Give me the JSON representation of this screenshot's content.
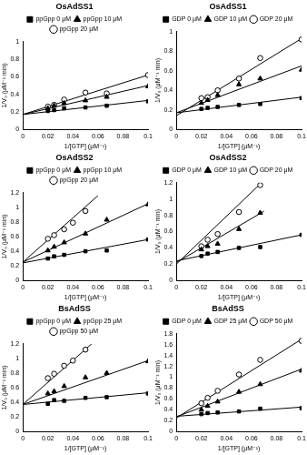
{
  "chart_data": [
    {
      "type": "scatter",
      "title": "OsAdSS1",
      "x_label": "1/[GTP] (μM⁻¹)",
      "y_label": "1/V₀ (μM⁻¹ min)",
      "xlim": [
        0,
        0.1
      ],
      "xticks": [
        0,
        0.02,
        0.04,
        0.06,
        0.08,
        0.1
      ],
      "ylim": [
        0,
        1
      ],
      "yticks": [
        0,
        0.2,
        0.4,
        0.6,
        0.8,
        1
      ],
      "grid": false,
      "legend": "top",
      "series": [
        {
          "name": "ppGpp 0 μM",
          "color": "#000000",
          "marker": "square",
          "x": [
            0.02,
            0.025,
            0.033,
            0.05,
            0.067,
            0.1
          ],
          "values": [
            0.21,
            0.22,
            0.24,
            0.25,
            0.27,
            0.32
          ],
          "fit": {
            "x": [
              0,
              0.1
            ],
            "values": [
              0.17,
              0.33
            ]
          }
        },
        {
          "name": "ppGpp 10 μM",
          "color": "#000000",
          "marker": "triangle",
          "x": [
            0.02,
            0.025,
            0.033,
            0.05,
            0.067,
            0.1
          ],
          "values": [
            0.24,
            0.27,
            0.3,
            0.33,
            0.37,
            0.49
          ],
          "fit": {
            "x": [
              0,
              0.1
            ],
            "values": [
              0.17,
              0.5
            ]
          }
        },
        {
          "name": "ppGpp 20 μM",
          "color": "#000000",
          "marker": "circle-open",
          "x": [
            0.02,
            0.025,
            0.033,
            0.05,
            0.067,
            0.1
          ],
          "values": [
            0.26,
            0.28,
            0.34,
            0.42,
            0.41,
            0.62
          ],
          "fit": {
            "x": [
              0,
              0.1
            ],
            "values": [
              0.17,
              0.62
            ]
          }
        }
      ]
    },
    {
      "type": "scatter",
      "title": "OsAdSS1",
      "x_label": "1/[GTP] (μM⁻¹)",
      "y_label": "1/V₀ (μM⁻¹ min)",
      "xlim": [
        0,
        0.1
      ],
      "xticks": [
        0,
        0.02,
        0.04,
        0.06,
        0.08,
        0.1
      ],
      "ylim": [
        0,
        1
      ],
      "yticks": [
        0,
        0.2,
        0.4,
        0.6,
        0.8,
        1
      ],
      "grid": false,
      "legend": "top",
      "series": [
        {
          "name": "GDP 0 μM",
          "color": "#000000",
          "marker": "square",
          "x": [
            0.02,
            0.025,
            0.033,
            0.05,
            0.067,
            0.1
          ],
          "values": [
            0.21,
            0.22,
            0.23,
            0.25,
            0.26,
            0.32
          ],
          "fit": {
            "x": [
              0,
              0.1
            ],
            "values": [
              0.17,
              0.33
            ]
          }
        },
        {
          "name": "GDP 10 μM",
          "color": "#000000",
          "marker": "triangle",
          "x": [
            0.02,
            0.025,
            0.033,
            0.05,
            0.067,
            0.1
          ],
          "values": [
            0.27,
            0.3,
            0.35,
            0.46,
            0.52,
            0.61
          ],
          "fit": {
            "x": [
              0,
              0.1
            ],
            "values": [
              0.17,
              0.65
            ]
          }
        },
        {
          "name": "GDP 20 μM",
          "color": "#000000",
          "marker": "circle-open",
          "x": [
            0.02,
            0.025,
            0.033,
            0.05,
            0.067,
            0.1
          ],
          "values": [
            0.32,
            0.33,
            0.4,
            0.52,
            0.73,
            0.92
          ],
          "fit": {
            "x": [
              0,
              0.1
            ],
            "values": [
              0.14,
              0.93
            ]
          }
        }
      ]
    },
    {
      "type": "scatter",
      "title": "OsAdSS2",
      "x_label": "1/[GTP] (μM⁻¹)",
      "y_label": "1/V₀ (μM⁻¹ min)",
      "xlim": [
        0,
        0.1
      ],
      "xticks": [
        0,
        0.02,
        0.04,
        0.06,
        0.08,
        0.1
      ],
      "ylim": [
        0,
        1.2
      ],
      "yticks": [
        0,
        0.2,
        0.4,
        0.6,
        0.8,
        1,
        1.2
      ],
      "grid": false,
      "legend": "top",
      "series": [
        {
          "name": "ppGpp 0 μM",
          "color": "#000000",
          "marker": "square",
          "x": [
            0.02,
            0.025,
            0.033,
            0.05,
            0.067,
            0.1
          ],
          "values": [
            0.3,
            0.33,
            0.35,
            0.4,
            0.41,
            0.56
          ],
          "fit": {
            "x": [
              0,
              0.1
            ],
            "values": [
              0.24,
              0.56
            ]
          }
        },
        {
          "name": "ppGpp 10 μM",
          "color": "#000000",
          "marker": "triangle",
          "x": [
            0.02,
            0.025,
            0.033,
            0.05,
            0.067,
            0.1
          ],
          "values": [
            0.41,
            0.46,
            0.52,
            0.64,
            0.83,
            1.04
          ],
          "fit": {
            "x": [
              0,
              0.1
            ],
            "values": [
              0.25,
              1.05
            ]
          }
        },
        {
          "name": "ppGpp 20 μM",
          "color": "#000000",
          "marker": "circle-open",
          "x": [
            0.02,
            0.025,
            0.033,
            0.04,
            0.05
          ],
          "values": [
            0.57,
            0.62,
            0.7,
            0.79,
            0.95
          ],
          "fit": {
            "x": [
              0,
              0.06
            ],
            "values": [
              0.25,
              1.16
            ]
          }
        }
      ]
    },
    {
      "type": "scatter",
      "title": "OsAdSS2",
      "x_label": "1/[GTP] (μM⁻¹)",
      "y_label": "1/V₀ (μM⁻¹ min)",
      "xlim": [
        0,
        0.1
      ],
      "xticks": [
        0,
        0.02,
        0.04,
        0.06,
        0.08,
        0.1
      ],
      "ylim": [
        0,
        1.2
      ],
      "yticks": [
        0,
        0.2,
        0.4,
        0.6,
        0.8,
        1,
        1.2
      ],
      "grid": false,
      "legend": "top",
      "series": [
        {
          "name": "GDP 0 μM",
          "color": "#000000",
          "marker": "square",
          "x": [
            0.02,
            0.025,
            0.033,
            0.05,
            0.067,
            0.1
          ],
          "values": [
            0.3,
            0.33,
            0.35,
            0.4,
            0.41,
            0.56
          ],
          "fit": {
            "x": [
              0,
              0.1
            ],
            "values": [
              0.24,
              0.56
            ]
          }
        },
        {
          "name": "GDP 10 μM",
          "color": "#000000",
          "marker": "triangle",
          "x": [
            0.02,
            0.025,
            0.033,
            0.05,
            0.067
          ],
          "values": [
            0.38,
            0.42,
            0.45,
            0.63,
            0.83
          ],
          "fit": {
            "x": [
              0,
              0.07
            ],
            "values": [
              0.22,
              0.85
            ]
          }
        },
        {
          "name": "GDP 20 μM",
          "color": "#000000",
          "marker": "circle-open",
          "x": [
            0.02,
            0.025,
            0.033,
            0.05,
            0.067
          ],
          "values": [
            0.42,
            0.5,
            0.57,
            0.84,
            1.17
          ],
          "fit": {
            "x": [
              0,
              0.068
            ],
            "values": [
              0.2,
              1.2
            ]
          }
        }
      ]
    },
    {
      "type": "scatter",
      "title": "BsAdSS",
      "x_label": "1/[GTP] (μM⁻¹)",
      "y_label": "1/V₀ (μM⁻¹ min)",
      "xlim": [
        0,
        0.1
      ],
      "xticks": [
        0,
        0.02,
        0.04,
        0.06,
        0.08,
        0.1
      ],
      "ylim": [
        0,
        1.2
      ],
      "yticks": [
        0,
        0.2,
        0.4,
        0.6,
        0.8,
        1,
        1.2
      ],
      "grid": false,
      "legend": "top",
      "series": [
        {
          "name": "ppGpp 0 μM",
          "color": "#000000",
          "marker": "square",
          "x": [
            0.02,
            0.025,
            0.033,
            0.05,
            0.067,
            0.1
          ],
          "values": [
            0.38,
            0.43,
            0.42,
            0.46,
            0.47,
            0.52
          ],
          "fit": {
            "x": [
              0,
              0.1
            ],
            "values": [
              0.37,
              0.53
            ]
          }
        },
        {
          "name": "ppGpp 25 μM",
          "color": "#000000",
          "marker": "triangle",
          "x": [
            0.02,
            0.025,
            0.033,
            0.05,
            0.067,
            0.1
          ],
          "values": [
            0.52,
            0.55,
            0.62,
            0.74,
            0.8,
            0.96
          ],
          "fit": {
            "x": [
              0,
              0.1
            ],
            "values": [
              0.37,
              0.97
            ]
          }
        },
        {
          "name": "ppGpp 50 μM",
          "color": "#000000",
          "marker": "circle-open",
          "x": [
            0.02,
            0.025,
            0.033,
            0.04,
            0.05
          ],
          "values": [
            0.73,
            0.79,
            0.9,
            0.97,
            1.12
          ],
          "fit": {
            "x": [
              0,
              0.055
            ],
            "values": [
              0.37,
              1.2
            ]
          }
        }
      ]
    },
    {
      "type": "scatter",
      "title": "BsAdSS",
      "x_label": "1/[GTP] (μM⁻¹)",
      "y_label": "1/V₀ (μM⁻¹ min)",
      "xlim": [
        0,
        0.1
      ],
      "xticks": [
        0,
        0.02,
        0.04,
        0.06,
        0.08,
        0.1
      ],
      "ylim": [
        0,
        1.8
      ],
      "yticks": [
        0,
        0.2,
        0.4,
        0.6,
        0.8,
        1,
        1.2,
        1.4,
        1.6,
        1.8
      ],
      "grid": false,
      "legend": "top",
      "series": [
        {
          "name": "GDP 0 μM",
          "color": "#000000",
          "marker": "square",
          "x": [
            0.02,
            0.025,
            0.033,
            0.05,
            0.067,
            0.1
          ],
          "values": [
            0.32,
            0.34,
            0.35,
            0.37,
            0.42,
            0.43
          ],
          "fit": {
            "x": [
              0,
              0.1
            ],
            "values": [
              0.28,
              0.45
            ]
          }
        },
        {
          "name": "GDP 25 μM",
          "color": "#000000",
          "marker": "triangle",
          "x": [
            0.02,
            0.025,
            0.033,
            0.05,
            0.067,
            0.1
          ],
          "values": [
            0.4,
            0.47,
            0.55,
            0.73,
            0.87,
            1.12
          ],
          "fit": {
            "x": [
              0,
              0.1
            ],
            "values": [
              0.27,
              1.15
            ]
          }
        },
        {
          "name": "GDP 50 μM",
          "color": "#000000",
          "marker": "circle-open",
          "x": [
            0.02,
            0.025,
            0.033,
            0.05,
            0.067,
            0.1
          ],
          "values": [
            0.52,
            0.62,
            0.75,
            1.05,
            1.32,
            1.67
          ],
          "fit": {
            "x": [
              0,
              0.1
            ],
            "values": [
              0.25,
              1.7
            ]
          }
        }
      ]
    }
  ]
}
